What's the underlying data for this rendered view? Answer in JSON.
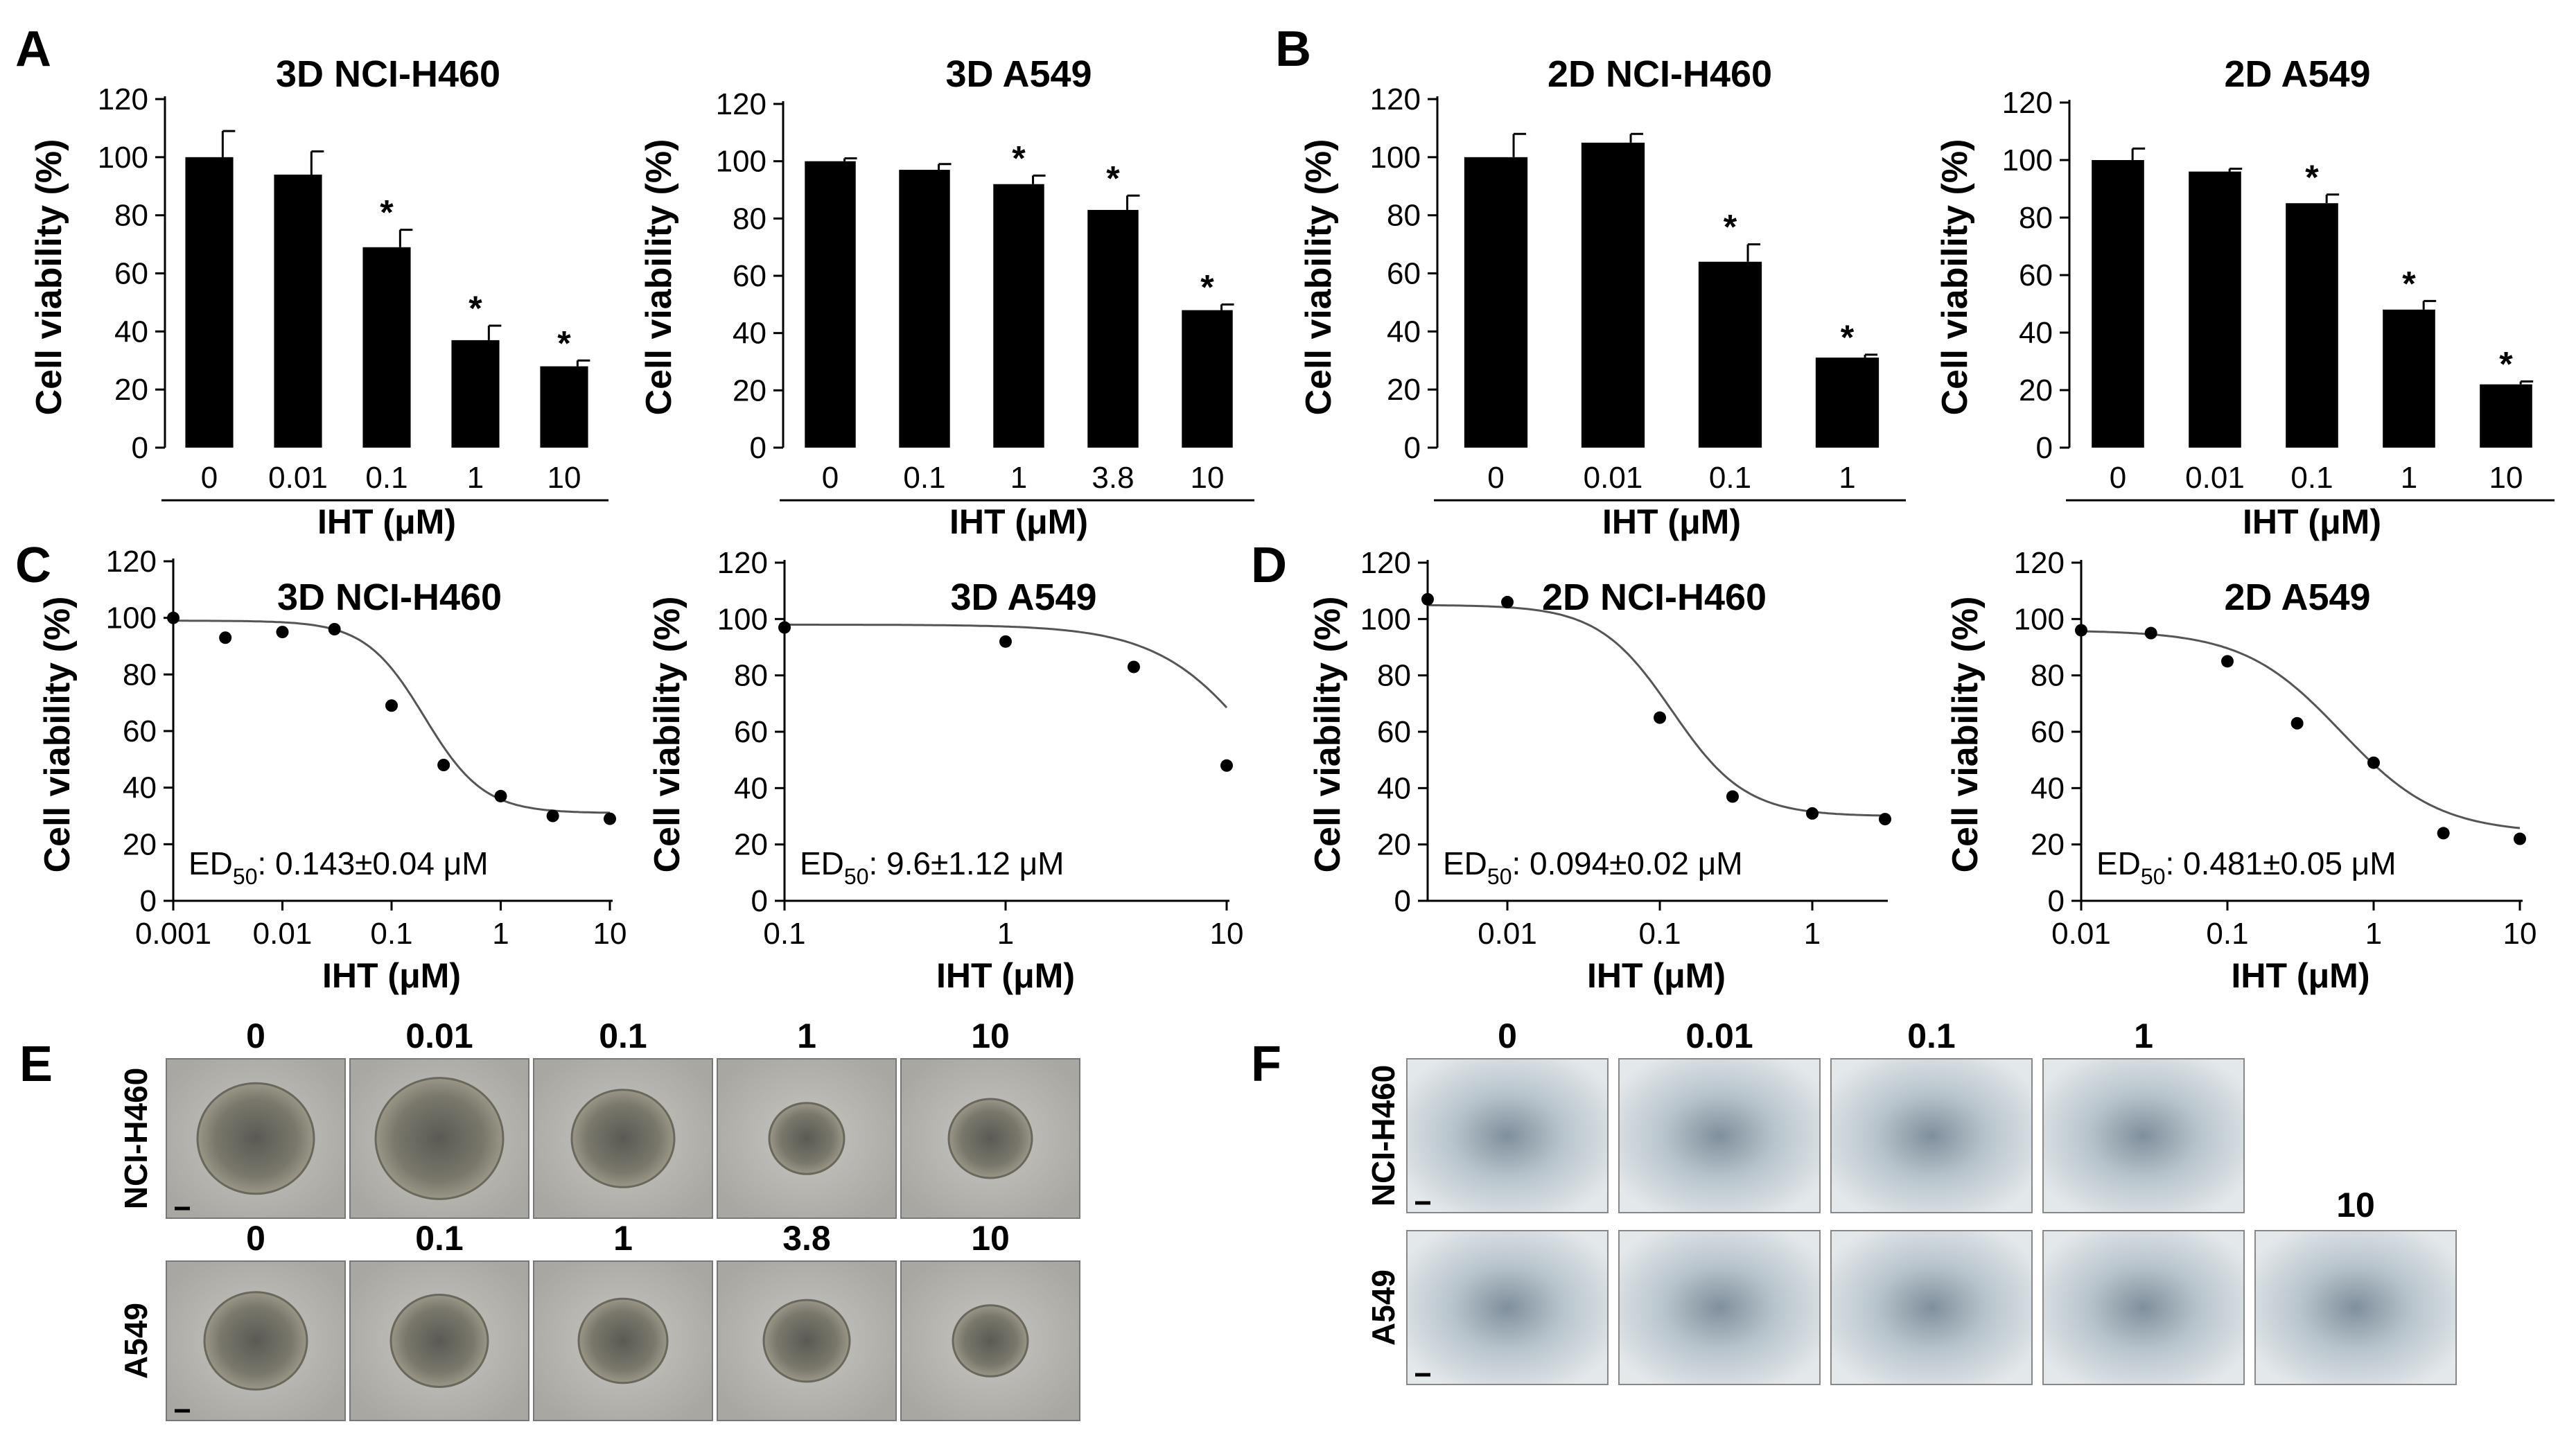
{
  "panels": {
    "A": "A",
    "B": "B",
    "C": "C",
    "D": "D",
    "E": "E",
    "F": "F"
  },
  "colors": {
    "bar": "#000000",
    "curve": "#555555",
    "point": "#000000"
  },
  "chart_data": [
    {
      "id": "A1",
      "type": "bar",
      "title": "3D NCI-H460",
      "xlabel": "IHT (μM)",
      "ylabel": "Cell viability (%)",
      "ylim": [
        0,
        120
      ],
      "yticks": [
        0,
        20,
        40,
        60,
        80,
        100,
        120
      ],
      "categories": [
        "0",
        "0.01",
        "0.1",
        "1",
        "10"
      ],
      "values": [
        100,
        94,
        69,
        37,
        28
      ],
      "errors": [
        9,
        8,
        6,
        5,
        2
      ],
      "significance": [
        "",
        "",
        "*",
        "*",
        "*"
      ]
    },
    {
      "id": "A2",
      "type": "bar",
      "title": "3D A549",
      "xlabel": "IHT (μM)",
      "ylabel": "Cell viability (%)",
      "ylim": [
        0,
        120
      ],
      "yticks": [
        0,
        20,
        40,
        60,
        80,
        100,
        120
      ],
      "categories": [
        "0",
        "0.1",
        "1",
        "3.8",
        "10"
      ],
      "values": [
        100,
        97,
        92,
        83,
        48
      ],
      "errors": [
        1,
        2,
        3,
        5,
        2
      ],
      "significance": [
        "",
        "",
        "*",
        "*",
        "*"
      ]
    },
    {
      "id": "B1",
      "type": "bar",
      "title": "2D NCI-H460",
      "xlabel": "IHT (μM)",
      "ylabel": "Cell viability (%)",
      "ylim": [
        0,
        120
      ],
      "yticks": [
        0,
        20,
        40,
        60,
        80,
        100,
        120
      ],
      "categories": [
        "0",
        "0.01",
        "0.1",
        "1"
      ],
      "values": [
        100,
        105,
        64,
        31
      ],
      "errors": [
        8,
        3,
        6,
        1
      ],
      "significance": [
        "",
        "",
        "*",
        "*"
      ]
    },
    {
      "id": "B2",
      "type": "bar",
      "title": "2D A549",
      "xlabel": "IHT (μM)",
      "ylabel": "Cell viability (%)",
      "ylim": [
        0,
        120
      ],
      "yticks": [
        0,
        20,
        40,
        60,
        80,
        100,
        120
      ],
      "categories": [
        "0",
        "0.01",
        "0.1",
        "1",
        "10"
      ],
      "values": [
        100,
        96,
        85,
        48,
        22
      ],
      "errors": [
        4,
        1,
        3,
        3,
        1
      ],
      "significance": [
        "",
        "",
        "*",
        "*",
        "*"
      ]
    },
    {
      "id": "C1",
      "type": "scatter",
      "title": "3D NCI-H460",
      "xlabel": "IHT (μM)",
      "ylabel": "Cell viability (%)",
      "xscale": "log",
      "xlim": [
        0.001,
        10
      ],
      "xticks": [
        0.001,
        0.01,
        0.1,
        1,
        10
      ],
      "xticklabels": [
        "0.001",
        "0.01",
        "0.1",
        "1",
        "10"
      ],
      "ylim": [
        0,
        120
      ],
      "yticks": [
        0,
        20,
        40,
        60,
        80,
        100,
        120
      ],
      "points": [
        [
          0.001,
          100
        ],
        [
          0.003,
          93
        ],
        [
          0.01,
          95
        ],
        [
          0.03,
          96
        ],
        [
          0.1,
          69
        ],
        [
          0.3,
          48
        ],
        [
          1,
          37
        ],
        [
          3,
          30
        ],
        [
          10,
          29
        ]
      ],
      "fit": {
        "top": 99,
        "bottom": 31,
        "ec50": 0.2,
        "hill": 1.6,
        "xmin": 0.001,
        "xmax": 10
      },
      "ed50_prefix": "ED",
      "ed50_sub": "50",
      "ed50_value": ": 0.143±0.04 μM"
    },
    {
      "id": "C2",
      "type": "scatter",
      "title": "3D A549",
      "xlabel": "IHT (μM)",
      "ylabel": "Cell viability (%)",
      "xscale": "log",
      "xlim": [
        0.1,
        10
      ],
      "xticks": [
        0.1,
        1,
        10
      ],
      "xticklabels": [
        "0.1",
        "1",
        "10"
      ],
      "ylim": [
        0,
        120
      ],
      "yticks": [
        0,
        20,
        40,
        60,
        80,
        100,
        120
      ],
      "points": [
        [
          0.1,
          97
        ],
        [
          1,
          92
        ],
        [
          3.8,
          83
        ],
        [
          10,
          48
        ]
      ],
      "fit": {
        "top": 98,
        "bottom": 0,
        "ec50": 16,
        "hill": 1.8,
        "xmin": 0.1,
        "xmax": 10
      },
      "ed50_prefix": "ED",
      "ed50_sub": "50",
      "ed50_value": ": 9.6±1.12 μM"
    },
    {
      "id": "D1",
      "type": "scatter",
      "title": "2D NCI-H460",
      "xlabel": "IHT (μM)",
      "ylabel": "Cell viability (%)",
      "xscale": "log",
      "xlim": [
        0.003,
        3
      ],
      "xticks": [
        0.01,
        0.1,
        1
      ],
      "xticklabels": [
        "0.01",
        "0.1",
        "1"
      ],
      "ylim": [
        0,
        120
      ],
      "yticks": [
        0,
        20,
        40,
        60,
        80,
        100,
        120
      ],
      "points": [
        [
          0.003,
          107
        ],
        [
          0.01,
          106
        ],
        [
          0.1,
          65
        ],
        [
          0.3,
          37
        ],
        [
          1,
          31
        ],
        [
          3,
          29
        ]
      ],
      "fit": {
        "top": 105,
        "bottom": 30,
        "ec50": 0.12,
        "hill": 1.8,
        "xmin": 0.003,
        "xmax": 3
      },
      "ed50_prefix": "ED",
      "ed50_sub": "50",
      "ed50_value": ": 0.094±0.02 μM"
    },
    {
      "id": "D2",
      "type": "scatter",
      "title": "2D A549",
      "xlabel": "IHT (μM)",
      "ylabel": "Cell viability (%)",
      "xscale": "log",
      "xlim": [
        0.01,
        10
      ],
      "xticks": [
        0.01,
        0.1,
        1,
        10
      ],
      "xticklabels": [
        "0.01",
        "0.1",
        "1",
        "10"
      ],
      "ylim": [
        0,
        120
      ],
      "yticks": [
        0,
        20,
        40,
        60,
        80,
        100,
        120
      ],
      "points": [
        [
          0.01,
          96
        ],
        [
          0.03,
          95
        ],
        [
          0.1,
          85
        ],
        [
          0.3,
          63
        ],
        [
          1,
          49
        ],
        [
          3,
          24
        ],
        [
          10,
          22
        ]
      ],
      "fit": {
        "top": 96,
        "bottom": 24,
        "ec50": 0.6,
        "hill": 1.3,
        "xmin": 0.01,
        "xmax": 10
      },
      "ed50_prefix": "ED",
      "ed50_sub": "50",
      "ed50_value": ": 0.481±0.05 μM"
    }
  ],
  "micrographs": {
    "E": {
      "rows": [
        {
          "label": "NCI-H460",
          "doses": [
            "0",
            "0.01",
            "0.1",
            "1",
            "10"
          ]
        },
        {
          "label": "A549",
          "doses": [
            "0",
            "0.1",
            "1",
            "3.8",
            "10"
          ]
        }
      ]
    },
    "F": {
      "rows": [
        {
          "label": "NCI-H460",
          "doses": [
            "0",
            "0.01",
            "0.1",
            "1"
          ]
        },
        {
          "label": "A549",
          "doses": [
            "10"
          ]
        }
      ]
    }
  }
}
